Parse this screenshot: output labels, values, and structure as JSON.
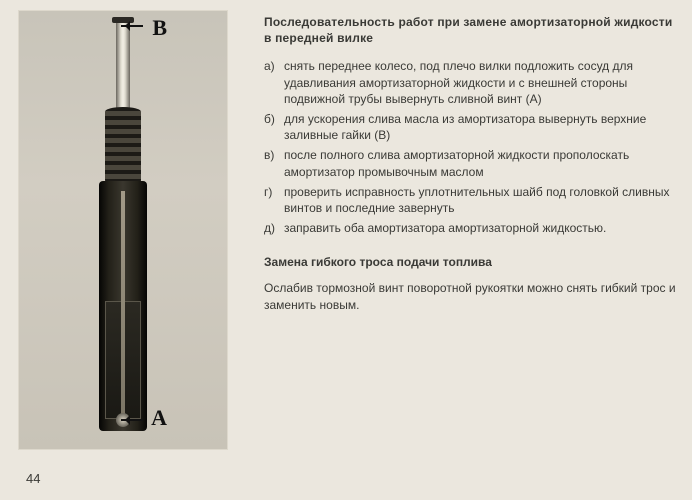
{
  "figure": {
    "labelTop": "B",
    "labelBottom": "A"
  },
  "heading1_line1": "Последовательность работ при замене амортизаторной жидкости",
  "heading1_line2": "в передней вилке",
  "items": [
    {
      "mk": "а)",
      "text": "снять переднее колесо, под плечо вилки подложить сосуд для удавливания амортизаторной жидкости и с внешней стороны подвижной трубы вывернуть сливной винт (A)"
    },
    {
      "mk": "б)",
      "text": "для ускорения слива масла из амортизатора вывернуть верхние заливные гайки (B)"
    },
    {
      "mk": "в)",
      "text": "после полного слива амортизаторной жидкости прополоскать амортизатор промывочным маслом"
    },
    {
      "mk": "г)",
      "text": "проверить исправность уплотнительных шайб под головкой сливных винтов и последние завернуть"
    },
    {
      "mk": "д)",
      "text": "заправить оба амортизатора амортизаторной жидкостью."
    }
  ],
  "heading2": "Замена гибкого троса подачи топлива",
  "paragraph": "Ослабив тормозной винт поворотной рукоятки можно снять гибкий трос и заменить новым.",
  "pageNumber": "44"
}
